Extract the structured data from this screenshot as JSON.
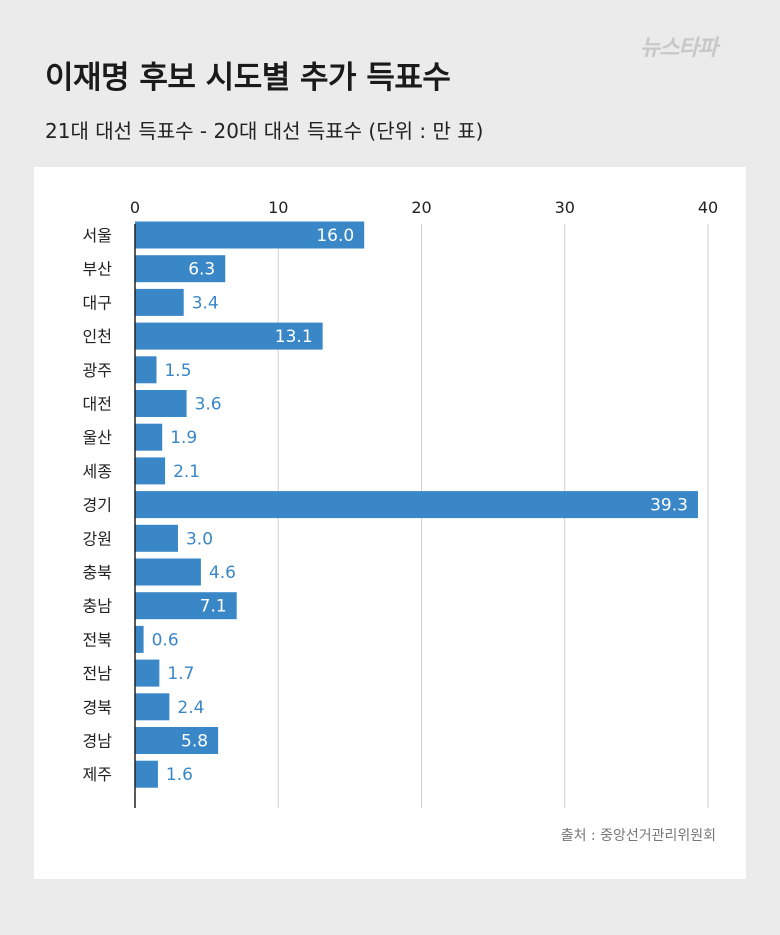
{
  "logo_text": "뉴스타파",
  "title": "이재명 후보 시도별 추가 득표수",
  "subtitle": "21대 대선 득표수 - 20대 대선 득표수 (단위 : 만 표)",
  "source": "출처 : 중앙선거관리위원회",
  "colors": {
    "bar": "#3a87c8",
    "label": "#3a87c8",
    "grid": "#cfcfcf",
    "axis": "#222222"
  },
  "chart_data": {
    "type": "bar",
    "orientation": "horizontal",
    "title": "이재명 후보 시도별 추가 득표수",
    "xlabel": "",
    "ylabel": "",
    "xlim": [
      0,
      40
    ],
    "ticks": [
      0,
      10,
      20,
      30,
      40
    ],
    "categories": [
      "서울",
      "부산",
      "대구",
      "인천",
      "광주",
      "대전",
      "울산",
      "세종",
      "경기",
      "강원",
      "충북",
      "충남",
      "전북",
      "전남",
      "경북",
      "경남",
      "제주"
    ],
    "values": [
      16.0,
      6.3,
      3.4,
      13.1,
      1.5,
      3.6,
      1.9,
      2.1,
      39.3,
      3.0,
      4.6,
      7.1,
      0.6,
      1.7,
      2.4,
      5.8,
      1.6
    ],
    "value_labels": [
      "16.0",
      "6.3",
      "3.4",
      "13.1",
      "1.5",
      "3.6",
      "1.9",
      "2.1",
      "39.3",
      "3.0",
      "4.6",
      "7.1",
      "0.6",
      "1.7",
      "2.4",
      "5.8",
      "1.6"
    ]
  }
}
